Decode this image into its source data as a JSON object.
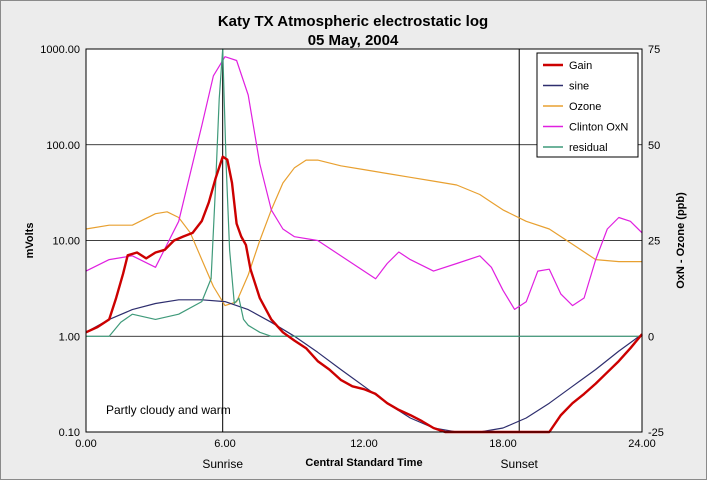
{
  "chart_data": {
    "type": "line",
    "title": "Katy TX Atmospheric  electrostatic log",
    "subtitle": "05 May, 2004",
    "xlabel": "Central Standard Time",
    "ylabel": "mVolts",
    "y2label": "OxN  -  Ozone  (ppb)",
    "xlim": [
      0,
      24
    ],
    "ylim": [
      0.1,
      1000
    ],
    "yscale": "log",
    "y2lim": [
      -25,
      75
    ],
    "x_ticks": [
      "0.00",
      "6.00",
      "12.00",
      "18.00",
      "24.00"
    ],
    "y_ticks": [
      "1000.00",
      "100.00",
      "10.00",
      "1.00",
      "0.10"
    ],
    "y2_ticks": [
      "75",
      "50",
      "25",
      "0",
      "-25"
    ],
    "grid": true,
    "legend_position": "top-right",
    "x_markers": [
      {
        "x": 5.9,
        "label": "Sunrise"
      },
      {
        "x": 18.7,
        "label": "Sunset"
      }
    ],
    "annotation": "Partly cloudy and warm",
    "series": [
      {
        "name": "Gain",
        "color": "#cc0000",
        "axis": "left",
        "points": [
          [
            0,
            1.1
          ],
          [
            0.5,
            1.25
          ],
          [
            1,
            1.5
          ],
          [
            1.3,
            2.5
          ],
          [
            1.6,
            4.5
          ],
          [
            1.8,
            7
          ],
          [
            2.2,
            7.5
          ],
          [
            2.6,
            6.5
          ],
          [
            3,
            7.5
          ],
          [
            3.4,
            8
          ],
          [
            3.8,
            10
          ],
          [
            4.2,
            11
          ],
          [
            4.6,
            12
          ],
          [
            5,
            16
          ],
          [
            5.3,
            25
          ],
          [
            5.6,
            45
          ],
          [
            5.9,
            75
          ],
          [
            6.1,
            70
          ],
          [
            6.3,
            40
          ],
          [
            6.5,
            15
          ],
          [
            6.7,
            11
          ],
          [
            6.9,
            9
          ],
          [
            7.1,
            5
          ],
          [
            7.5,
            2.5
          ],
          [
            8,
            1.5
          ],
          [
            8.5,
            1.1
          ],
          [
            9,
            0.9
          ],
          [
            9.5,
            0.75
          ],
          [
            10,
            0.55
          ],
          [
            10.5,
            0.45
          ],
          [
            11,
            0.35
          ],
          [
            11.5,
            0.3
          ],
          [
            12,
            0.28
          ],
          [
            12.5,
            0.25
          ],
          [
            13,
            0.2
          ],
          [
            13.5,
            0.17
          ],
          [
            14,
            0.15
          ],
          [
            14.5,
            0.13
          ],
          [
            15,
            0.11
          ],
          [
            15.5,
            0.1
          ],
          [
            16,
            0.1
          ],
          [
            17,
            0.1
          ],
          [
            18,
            0.1
          ],
          [
            19,
            0.1
          ],
          [
            20,
            0.1
          ],
          [
            20.5,
            0.15
          ],
          [
            21,
            0.2
          ],
          [
            21.5,
            0.25
          ],
          [
            22,
            0.32
          ],
          [
            22.5,
            0.42
          ],
          [
            23,
            0.55
          ],
          [
            23.5,
            0.75
          ],
          [
            24,
            1.05
          ]
        ]
      },
      {
        "name": "sine",
        "color": "#2e2e6e",
        "axis": "left",
        "points": [
          [
            0,
            1.1
          ],
          [
            1,
            1.5
          ],
          [
            2,
            1.9
          ],
          [
            3,
            2.2
          ],
          [
            4,
            2.4
          ],
          [
            5,
            2.4
          ],
          [
            6,
            2.3
          ],
          [
            7,
            1.9
          ],
          [
            8,
            1.4
          ],
          [
            9,
            1.0
          ],
          [
            10,
            0.68
          ],
          [
            11,
            0.45
          ],
          [
            12,
            0.3
          ],
          [
            13,
            0.2
          ],
          [
            14,
            0.14
          ],
          [
            15,
            0.11
          ],
          [
            16,
            0.1
          ],
          [
            17,
            0.1
          ],
          [
            18,
            0.11
          ],
          [
            19,
            0.14
          ],
          [
            20,
            0.2
          ],
          [
            21,
            0.3
          ],
          [
            22,
            0.45
          ],
          [
            23,
            0.7
          ],
          [
            24,
            1.05
          ]
        ]
      },
      {
        "name": "Ozone",
        "color": "#e8a030",
        "axis": "right",
        "points": [
          [
            0,
            28
          ],
          [
            1,
            29
          ],
          [
            2,
            29
          ],
          [
            3,
            32
          ],
          [
            3.5,
            32.5
          ],
          [
            4,
            31
          ],
          [
            4.5,
            27
          ],
          [
            5,
            20
          ],
          [
            5.5,
            13
          ],
          [
            6,
            8
          ],
          [
            6.5,
            9
          ],
          [
            7,
            16
          ],
          [
            7.5,
            25
          ],
          [
            8,
            33
          ],
          [
            8.5,
            40
          ],
          [
            9,
            44
          ],
          [
            9.5,
            46
          ],
          [
            10,
            46
          ],
          [
            11,
            44.5
          ],
          [
            12,
            43.5
          ],
          [
            13,
            42.5
          ],
          [
            14,
            41.5
          ],
          [
            15,
            40.5
          ],
          [
            16,
            39.5
          ],
          [
            17,
            37
          ],
          [
            17.5,
            35
          ],
          [
            18,
            33
          ],
          [
            19,
            30
          ],
          [
            20,
            28
          ],
          [
            21,
            24
          ],
          [
            22,
            20
          ],
          [
            23,
            19.5
          ],
          [
            24,
            19.5
          ]
        ]
      },
      {
        "name": "Clinton OxN",
        "color": "#e020e0",
        "axis": "right",
        "points": [
          [
            0,
            17
          ],
          [
            1,
            20
          ],
          [
            2,
            21
          ],
          [
            3,
            18
          ],
          [
            4,
            30
          ],
          [
            5,
            55
          ],
          [
            5.5,
            68
          ],
          [
            6,
            73
          ],
          [
            6.5,
            72
          ],
          [
            7,
            63
          ],
          [
            7.5,
            45
          ],
          [
            8,
            33
          ],
          [
            8.5,
            28
          ],
          [
            9,
            26
          ],
          [
            10,
            25
          ],
          [
            12.5,
            15
          ],
          [
            13,
            19
          ],
          [
            13.5,
            22
          ],
          [
            14,
            20
          ],
          [
            15,
            17
          ],
          [
            16,
            19
          ],
          [
            17,
            21
          ],
          [
            17.5,
            18
          ],
          [
            18,
            12
          ],
          [
            18.5,
            7
          ],
          [
            19,
            9
          ],
          [
            19.5,
            17
          ],
          [
            20,
            17.5
          ],
          [
            20.5,
            11
          ],
          [
            21,
            8
          ],
          [
            21.5,
            10
          ],
          [
            22,
            20
          ],
          [
            22.5,
            28
          ],
          [
            23,
            31
          ],
          [
            23.5,
            30
          ],
          [
            24,
            27
          ]
        ]
      },
      {
        "name": "residual",
        "color": "#3f9a7a",
        "axis": "left",
        "points": [
          [
            0,
            1
          ],
          [
            1,
            1
          ],
          [
            1.5,
            1.4
          ],
          [
            2,
            1.7
          ],
          [
            3,
            1.5
          ],
          [
            4,
            1.7
          ],
          [
            5,
            2.3
          ],
          [
            5.4,
            4
          ],
          [
            5.6,
            40
          ],
          [
            5.75,
            300
          ],
          [
            5.9,
            1000
          ],
          [
            6.05,
            60
          ],
          [
            6.2,
            8
          ],
          [
            6.4,
            2.2
          ],
          [
            6.6,
            2.5
          ],
          [
            6.8,
            1.5
          ],
          [
            7,
            1.3
          ],
          [
            7.5,
            1.1
          ],
          [
            8,
            1
          ],
          [
            24,
            1
          ]
        ]
      }
    ]
  }
}
